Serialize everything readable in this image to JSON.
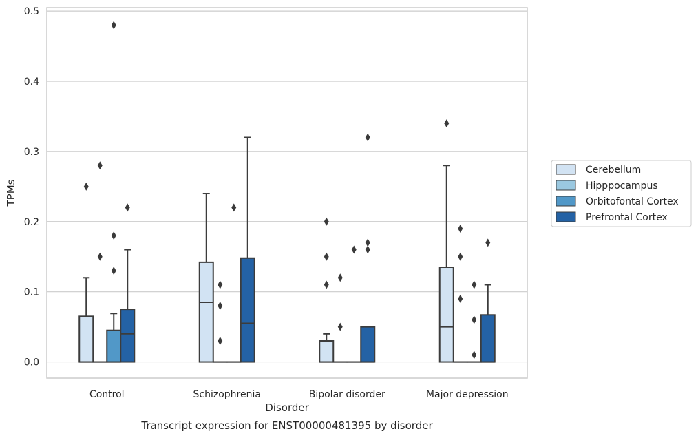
{
  "chart_data": {
    "type": "boxplot",
    "title": "",
    "caption": "Transcript expression for ENST00000481395 by disorder",
    "xlabel": "Disorder",
    "ylabel": "TPMs",
    "ylim": [
      -0.023,
      0.505
    ],
    "yticks": [
      0.0,
      0.1,
      0.2,
      0.3,
      0.4,
      0.5
    ],
    "ytick_labels": [
      "0.0",
      "0.1",
      "0.2",
      "0.3",
      "0.4",
      "0.5"
    ],
    "grid": "horizontal",
    "legend_position": "outside-right",
    "categories": [
      "Control",
      "Schizophrenia",
      "Bipolar disorder",
      "Major depression"
    ],
    "series": [
      {
        "name": "Cerebellum",
        "color": "#d2e3f3",
        "boxes": [
          {
            "q1": 0.0,
            "median": 0.0,
            "q3": 0.065,
            "whisker_low": 0.0,
            "whisker_high": 0.12,
            "outliers": [
              0.25
            ]
          },
          {
            "q1": 0.0,
            "median": 0.085,
            "q3": 0.142,
            "whisker_low": 0.0,
            "whisker_high": 0.24,
            "outliers": []
          },
          {
            "q1": 0.0,
            "median": 0.0,
            "q3": 0.03,
            "whisker_low": 0.0,
            "whisker_high": 0.04,
            "outliers": [
              0.11,
              0.15,
              0.2
            ]
          },
          {
            "q1": 0.0,
            "median": 0.05,
            "q3": 0.135,
            "whisker_low": 0.0,
            "whisker_high": 0.28,
            "outliers": [
              0.34
            ]
          }
        ]
      },
      {
        "name": "Hipppocampus",
        "color": "#9ac8e0",
        "boxes": [
          {
            "q1": 0.0,
            "median": 0.0,
            "q3": 0.0,
            "whisker_low": 0.0,
            "whisker_high": 0.0,
            "outliers": [
              0.15,
              0.28
            ]
          },
          {
            "q1": 0.0,
            "median": 0.0,
            "q3": 0.0,
            "whisker_low": 0.0,
            "whisker_high": 0.0,
            "outliers": [
              0.03,
              0.08,
              0.11
            ]
          },
          {
            "q1": 0.0,
            "median": 0.0,
            "q3": 0.0,
            "whisker_low": 0.0,
            "whisker_high": 0.0,
            "outliers": [
              0.05,
              0.12
            ]
          },
          {
            "q1": 0.0,
            "median": 0.0,
            "q3": 0.0,
            "whisker_low": 0.0,
            "whisker_high": 0.0,
            "outliers": [
              0.09,
              0.15,
              0.19
            ]
          }
        ]
      },
      {
        "name": "Orbitofontal Cortex",
        "color": "#5198c8",
        "boxes": [
          {
            "q1": 0.0,
            "median": 0.0,
            "q3": 0.045,
            "whisker_low": 0.0,
            "whisker_high": 0.069,
            "outliers": [
              0.13,
              0.18,
              0.48
            ]
          },
          {
            "q1": 0.0,
            "median": 0.0,
            "q3": 0.0,
            "whisker_low": 0.0,
            "whisker_high": 0.0,
            "outliers": [
              0.22
            ]
          },
          {
            "q1": 0.0,
            "median": 0.0,
            "q3": 0.0,
            "whisker_low": 0.0,
            "whisker_high": 0.0,
            "outliers": [
              0.16
            ]
          },
          {
            "q1": 0.0,
            "median": 0.0,
            "q3": 0.0,
            "whisker_low": 0.0,
            "whisker_high": 0.0,
            "outliers": [
              0.01,
              0.06,
              0.11
            ]
          }
        ]
      },
      {
        "name": "Prefrontal Cortex",
        "color": "#2462a5",
        "boxes": [
          {
            "q1": 0.0,
            "median": 0.04,
            "q3": 0.075,
            "whisker_low": 0.0,
            "whisker_high": 0.16,
            "outliers": [
              0.22
            ]
          },
          {
            "q1": 0.0,
            "median": 0.055,
            "q3": 0.148,
            "whisker_low": 0.0,
            "whisker_high": 0.32,
            "outliers": []
          },
          {
            "q1": 0.0,
            "median": 0.0,
            "q3": 0.05,
            "whisker_low": 0.0,
            "whisker_high": 0.05,
            "outliers": [
              0.16,
              0.17,
              0.32
            ]
          },
          {
            "q1": 0.0,
            "median": 0.0,
            "q3": 0.067,
            "whisker_low": 0.0,
            "whisker_high": 0.11,
            "outliers": [
              0.17
            ]
          }
        ]
      }
    ]
  }
}
